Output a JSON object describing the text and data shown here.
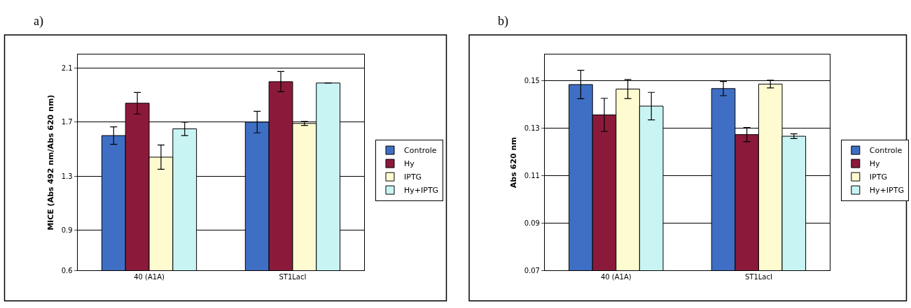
{
  "chart_data": [
    {
      "type": "bar",
      "title": "a)",
      "ylabel": "MICE (Abs 492 nm/Abs 620 nm)",
      "categories": [
        "40 (A1A)",
        "ST1LacI"
      ],
      "series": [
        {
          "name": "Controle",
          "color": "#3f6fc4",
          "values": [
            1.6,
            1.7
          ],
          "errors": [
            0.065,
            0.08
          ]
        },
        {
          "name": "Hy",
          "color": "#8b1a3a",
          "values": [
            1.84,
            2.0
          ],
          "errors": [
            0.08,
            0.075
          ]
        },
        {
          "name": "IPTG",
          "color": "#fffbd0",
          "values": [
            1.44,
            1.69
          ],
          "errors": [
            0.09,
            0.015
          ]
        },
        {
          "name": "Hy+IPTG",
          "color": "#c8f4f4",
          "values": [
            1.65,
            1.99
          ],
          "errors": [
            0.05,
            null
          ]
        }
      ],
      "ylim": [
        0.6,
        2.2
      ],
      "yticks": [
        0.6,
        0.9,
        1.3,
        1.7,
        2.1
      ],
      "grid": "y",
      "legend": "right"
    },
    {
      "type": "bar",
      "title": "b)",
      "ylabel": "Abs 620 nm",
      "categories": [
        "40 (A1A)",
        "ST1LacI"
      ],
      "series": [
        {
          "name": "Controle",
          "color": "#3f6fc4",
          "values": [
            0.1484,
            0.1467
          ],
          "errors": [
            0.006,
            0.003
          ]
        },
        {
          "name": "Hy",
          "color": "#8b1a3a",
          "values": [
            0.1356,
            0.1273
          ],
          "errors": [
            0.007,
            0.003
          ]
        },
        {
          "name": "IPTG",
          "color": "#fffbd0",
          "values": [
            0.1465,
            0.1486
          ],
          "errors": [
            0.004,
            0.0016
          ]
        },
        {
          "name": "Hy+IPTG",
          "color": "#c8f4f4",
          "values": [
            0.1393,
            0.1266
          ],
          "errors": [
            0.0058,
            0.001
          ]
        }
      ],
      "ylim": [
        0.07,
        0.161
      ],
      "yticks": [
        0.07,
        0.09,
        0.11,
        0.13,
        0.15
      ],
      "grid": "y",
      "legend": "right"
    }
  ]
}
